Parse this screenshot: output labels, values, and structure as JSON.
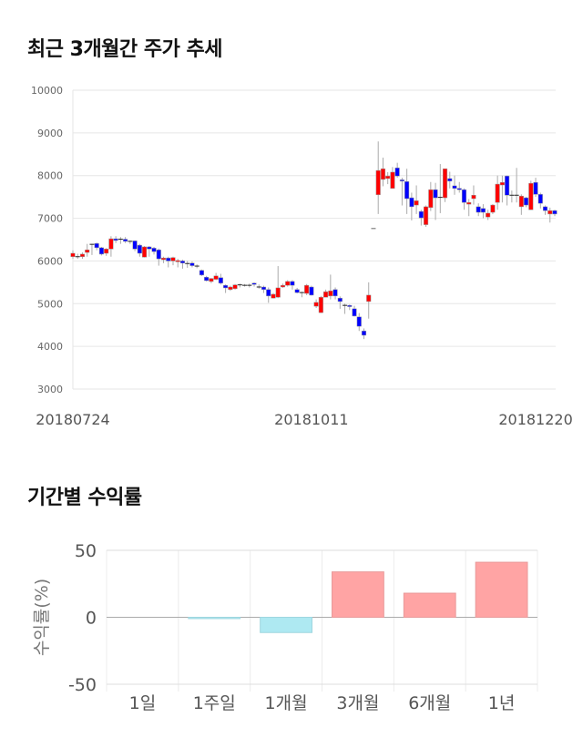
{
  "sections": {
    "price_trend_title": "최근 3개월간 주가 추세",
    "returns_title": "기간별 수익률"
  },
  "colors": {
    "up": "#ff0000",
    "down": "#0000ff",
    "positive_bar": "#ffa4a4",
    "negative_bar": "#aee9f2",
    "grid": "#e6e6e6"
  },
  "chart_data": [
    {
      "type": "candlestick",
      "title": "최근 3개월간 주가 추세",
      "ylim": [
        3000,
        10000
      ],
      "yticks": [
        3000,
        4000,
        5000,
        6000,
        7000,
        8000,
        9000,
        10000
      ],
      "xtick_labels": [
        "20180724",
        "20181011",
        "20181220"
      ],
      "grid": true,
      "ohlc_fields": [
        "open",
        "high",
        "low",
        "close"
      ],
      "ohlc": [
        [
          6100,
          6250,
          6050,
          6180
        ],
        [
          6100,
          6170,
          6050,
          6100
        ],
        [
          6100,
          6200,
          6050,
          6160
        ],
        [
          6200,
          6400,
          6100,
          6260
        ],
        [
          6390,
          6400,
          6140,
          6390
        ],
        [
          6410,
          6430,
          6250,
          6310
        ],
        [
          6310,
          6330,
          6130,
          6160
        ],
        [
          6180,
          6300,
          6120,
          6280
        ],
        [
          6280,
          6580,
          6100,
          6520
        ],
        [
          6520,
          6580,
          6420,
          6480
        ],
        [
          6500,
          6560,
          6400,
          6510
        ],
        [
          6510,
          6560,
          6420,
          6460
        ],
        [
          6470,
          6480,
          6400,
          6460
        ],
        [
          6470,
          6480,
          6230,
          6280
        ],
        [
          6370,
          6400,
          6100,
          6180
        ],
        [
          6090,
          6350,
          6080,
          6330
        ],
        [
          6330,
          6350,
          6100,
          6280
        ],
        [
          6300,
          6330,
          6150,
          6220
        ],
        [
          6260,
          6290,
          5890,
          6050
        ],
        [
          6030,
          6100,
          5950,
          6070
        ],
        [
          6070,
          6100,
          5850,
          6000
        ],
        [
          6000,
          6100,
          5900,
          6080
        ],
        [
          5980,
          6050,
          5850,
          6010
        ],
        [
          6000,
          6030,
          5820,
          5950
        ],
        [
          5950,
          6000,
          5840,
          5940
        ],
        [
          5950,
          5990,
          5850,
          5890
        ],
        [
          5890,
          5920,
          5830,
          5880
        ],
        [
          5780,
          5800,
          5650,
          5670
        ],
        [
          5620,
          5650,
          5520,
          5540
        ],
        [
          5520,
          5600,
          5480,
          5590
        ],
        [
          5570,
          5720,
          5550,
          5650
        ],
        [
          5610,
          5700,
          5450,
          5480
        ],
        [
          5430,
          5450,
          5250,
          5370
        ],
        [
          5330,
          5420,
          5300,
          5390
        ],
        [
          5350,
          5460,
          5330,
          5440
        ],
        [
          5430,
          5470,
          5380,
          5440
        ],
        [
          5440,
          5460,
          5400,
          5430
        ],
        [
          5430,
          5470,
          5380,
          5430
        ],
        [
          5480,
          5500,
          5400,
          5450
        ],
        [
          5390,
          5450,
          5350,
          5390
        ],
        [
          5390,
          5420,
          5250,
          5330
        ],
        [
          5330,
          5380,
          5020,
          5180
        ],
        [
          5130,
          5250,
          5120,
          5220
        ],
        [
          5150,
          5880,
          5130,
          5370
        ],
        [
          5390,
          5470,
          5370,
          5430
        ],
        [
          5430,
          5550,
          5400,
          5520
        ],
        [
          5520,
          5550,
          5330,
          5430
        ],
        [
          5330,
          5370,
          5240,
          5260
        ],
        [
          5260,
          5280,
          5150,
          5260
        ],
        [
          5240,
          5460,
          5200,
          5430
        ],
        [
          5390,
          5420,
          5190,
          5200
        ],
        [
          4940,
          5100,
          4900,
          5030
        ],
        [
          4790,
          5180,
          4780,
          5150
        ],
        [
          5150,
          5330,
          5150,
          5280
        ],
        [
          5180,
          5680,
          5100,
          5300
        ],
        [
          5330,
          5380,
          5100,
          5180
        ],
        [
          5130,
          5170,
          4880,
          5050
        ],
        [
          4980,
          5000,
          4760,
          4960
        ],
        [
          4960,
          4980,
          4850,
          4930
        ],
        [
          4880,
          4950,
          4700,
          4710
        ],
        [
          4690,
          4780,
          4360,
          4470
        ],
        [
          4360,
          4420,
          4170,
          4260
        ],
        [
          5050,
          5500,
          4650,
          5200
        ],
        [
          6760,
          6760,
          6760,
          6760
        ],
        [
          7550,
          8800,
          7100,
          8120
        ],
        [
          7910,
          8420,
          7750,
          8160
        ],
        [
          7930,
          8080,
          7800,
          7990
        ],
        [
          7700,
          8200,
          7700,
          8080
        ],
        [
          8180,
          8300,
          7950,
          7990
        ],
        [
          7900,
          7950,
          7300,
          7870
        ],
        [
          7860,
          8160,
          7100,
          7460
        ],
        [
          7480,
          7600,
          6950,
          7270
        ],
        [
          7310,
          7770,
          7100,
          7410
        ],
        [
          7160,
          7200,
          6830,
          7010
        ],
        [
          6850,
          7300,
          6800,
          7270
        ],
        [
          7250,
          7850,
          7170,
          7670
        ],
        [
          7670,
          7830,
          6960,
          7480
        ],
        [
          7480,
          8270,
          7120,
          7490
        ],
        [
          7480,
          8160,
          7380,
          8160
        ],
        [
          7930,
          8090,
          7700,
          7870
        ],
        [
          7760,
          8000,
          7550,
          7700
        ],
        [
          7700,
          7850,
          7600,
          7670
        ],
        [
          7670,
          7700,
          7200,
          7370
        ],
        [
          7330,
          7450,
          7050,
          7370
        ],
        [
          7460,
          7770,
          7320,
          7540
        ],
        [
          7270,
          7350,
          7050,
          7140
        ],
        [
          7230,
          7330,
          7000,
          7140
        ],
        [
          7030,
          7200,
          6960,
          7120
        ],
        [
          7140,
          7330,
          7100,
          7310
        ],
        [
          7370,
          8000,
          7200,
          7800
        ],
        [
          7780,
          8000,
          7370,
          7840
        ],
        [
          7990,
          8000,
          7300,
          7540
        ],
        [
          7560,
          7650,
          7370,
          7540
        ],
        [
          7540,
          8180,
          7370,
          7540
        ],
        [
          7270,
          7560,
          7080,
          7520
        ],
        [
          7480,
          7500,
          7260,
          7310
        ],
        [
          7200,
          7880,
          7200,
          7820
        ],
        [
          7840,
          7950,
          7500,
          7560
        ],
        [
          7560,
          7600,
          7230,
          7350
        ],
        [
          7270,
          7300,
          7080,
          7180
        ],
        [
          7100,
          7250,
          6900,
          7180
        ],
        [
          7180,
          7200,
          7050,
          7100
        ]
      ]
    },
    {
      "type": "bar",
      "title": "기간별 수익률",
      "ylabel": "수익률(%)",
      "ylim": [
        -50,
        50
      ],
      "yticks": [
        -50,
        0,
        50
      ],
      "categories": [
        "1일",
        "1주일",
        "1개월",
        "3개월",
        "6개월",
        "1년"
      ],
      "values": [
        0,
        -1,
        -11.4,
        33.9,
        18,
        41.1
      ],
      "grid": true
    }
  ]
}
